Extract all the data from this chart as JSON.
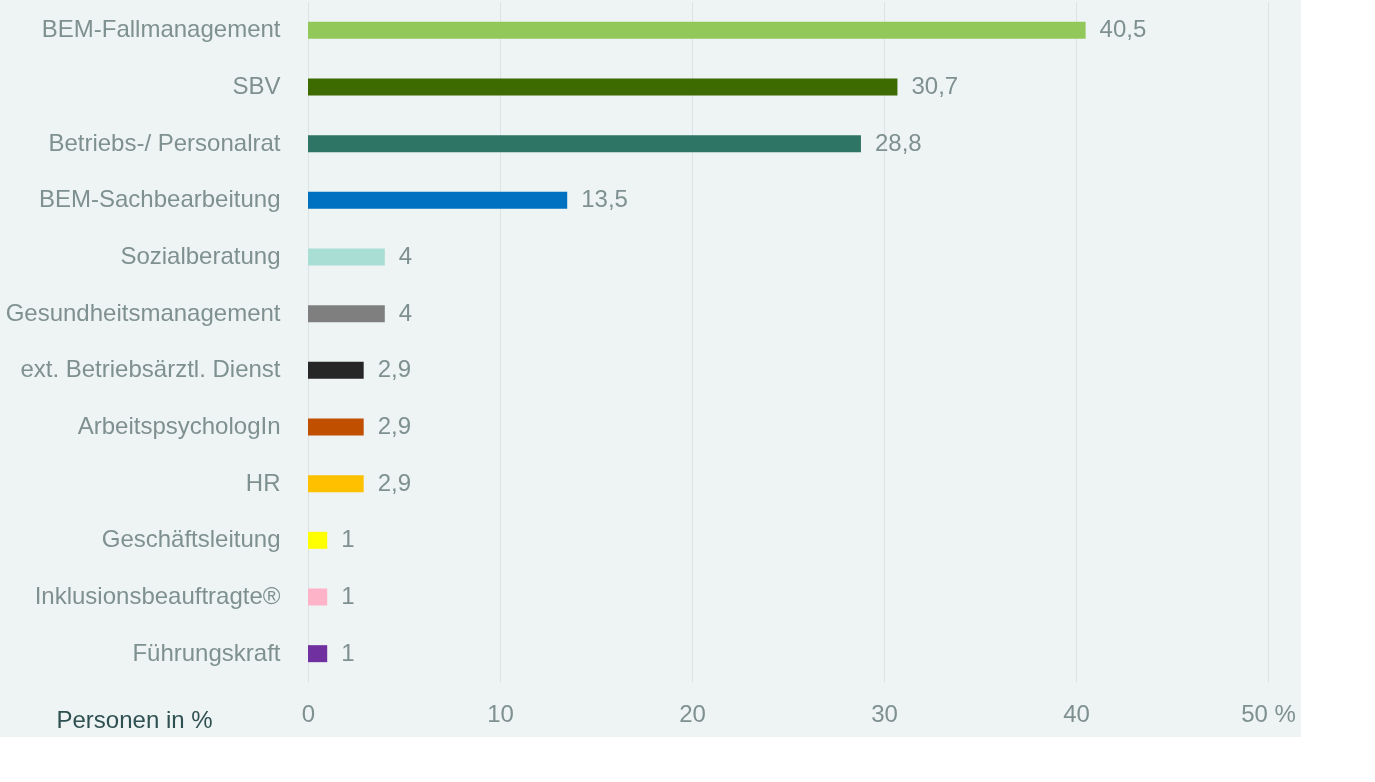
{
  "chart_data": {
    "type": "bar",
    "orientation": "horizontal",
    "xlabel": "Personen in %",
    "categories": [
      "BEM-Fallmanagement",
      "SBV",
      "Betriebs-/ Personalrat",
      "BEM-Sachbearbeitung",
      "Sozialberatung",
      "Gesundheitsmanagement",
      "ext. Betriebsärztl. Dienst",
      "ArbeitspsychologIn",
      "HR",
      "Geschäftsleitung",
      "Inklusionsbeauftragte®",
      "Führungskraft"
    ],
    "values": [
      40.5,
      30.7,
      28.8,
      13.5,
      4,
      4,
      2.9,
      2.9,
      2.9,
      1,
      1,
      1
    ],
    "value_labels": [
      "40,5",
      "30,7",
      "28,8",
      "13,5",
      "4",
      "4",
      "2,9",
      "2,9",
      "2,9",
      "1",
      "1",
      "1"
    ],
    "colors": [
      "#92c85a",
      "#3d6b00",
      "#2e7565",
      "#0070c0",
      "#a8ded3",
      "#7f7f7f",
      "#262626",
      "#c04f00",
      "#ffc000",
      "#ffff00",
      "#ffb3c8",
      "#7030a0"
    ],
    "xlim": [
      0,
      50
    ],
    "xticks": [
      0,
      10,
      20,
      30,
      40,
      {
        "value": 50,
        "label": "50 %"
      }
    ],
    "grid": "x"
  }
}
